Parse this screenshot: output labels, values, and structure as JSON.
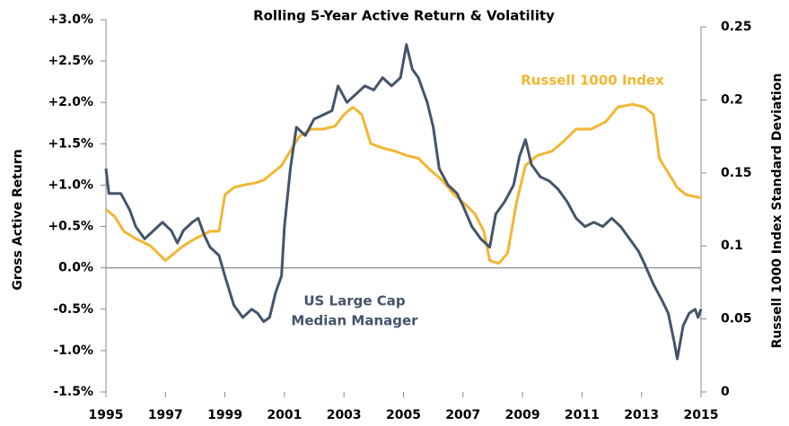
{
  "chart_data": {
    "type": "line",
    "title": "Rolling 5-Year Active Return & Volatility",
    "y_label": "Gross Active Return",
    "y2_label": "Russell 1000 Index Standard Deviation",
    "annotations": [
      "Russell 1000 Index",
      "US Large Cap",
      "Median Manager"
    ],
    "xlim": [
      1995,
      2015
    ],
    "xticks": [
      1995,
      1997,
      1999,
      2001,
      2003,
      2005,
      2007,
      2009,
      2011,
      2013,
      2015
    ],
    "ylim": [
      -1.5,
      3
    ],
    "yticks": [
      {
        "value": 3,
        "label": "+3.0%"
      },
      {
        "value": 2.5,
        "label": "+2.5%"
      },
      {
        "value": 2,
        "label": "+2.0%"
      },
      {
        "value": 1.5,
        "label": "+1.5%"
      },
      {
        "value": 1,
        "label": "+1.0%"
      },
      {
        "value": 0.5,
        "label": "+0.5%"
      },
      {
        "value": 0,
        "label": "0.0%"
      },
      {
        "value": -0.5,
        "label": "-0.5%"
      },
      {
        "value": -1,
        "label": "-1.0%"
      },
      {
        "value": -1.5,
        "label": "-1.5%"
      }
    ],
    "y2lim": [
      0,
      0.25
    ],
    "y2ticks": [
      0.25,
      0.2,
      0.15,
      0.1,
      0.05,
      0
    ],
    "series": [
      {
        "name": "US Large Cap Median Manager",
        "color": "#44546a",
        "axis": "y",
        "x": [
          1995.0,
          1995.1,
          1995.5,
          1995.8,
          1996.0,
          1996.3,
          1996.6,
          1996.9,
          1997.2,
          1997.4,
          1997.6,
          1997.9,
          1998.1,
          1998.3,
          1998.5,
          1998.8,
          1999.0,
          1999.3,
          1999.6,
          1999.9,
          2000.1,
          2000.3,
          2000.5,
          2000.7,
          2000.9,
          2001.0,
          2001.2,
          2001.4,
          2001.7,
          2002.0,
          2002.3,
          2002.6,
          2002.8,
          2003.1,
          2003.4,
          2003.7,
          2004.0,
          2004.3,
          2004.6,
          2004.9,
          2005.1,
          2005.3,
          2005.5,
          2005.8,
          2006.0,
          2006.2,
          2006.5,
          2006.8,
          2007.0,
          2007.3,
          2007.6,
          2007.9,
          2008.1,
          2008.4,
          2008.7,
          2008.9,
          2009.1,
          2009.3,
          2009.6,
          2009.9,
          2010.2,
          2010.5,
          2010.8,
          2011.1,
          2011.4,
          2011.7,
          2012.0,
          2012.3,
          2012.6,
          2012.9,
          2013.1,
          2013.4,
          2013.7,
          2013.9,
          2014.1,
          2014.2,
          2014.4,
          2014.6,
          2014.8,
          2014.9,
          2015.0
        ],
        "values": [
          1.2,
          0.9,
          0.9,
          0.7,
          0.5,
          0.35,
          0.45,
          0.55,
          0.45,
          0.3,
          0.45,
          0.55,
          0.6,
          0.4,
          0.25,
          0.15,
          -0.1,
          -0.45,
          -0.6,
          -0.5,
          -0.55,
          -0.65,
          -0.6,
          -0.3,
          -0.1,
          0.5,
          1.2,
          1.7,
          1.6,
          1.8,
          1.85,
          1.9,
          2.2,
          2.0,
          2.1,
          2.2,
          2.15,
          2.3,
          2.2,
          2.3,
          2.7,
          2.4,
          2.3,
          2.0,
          1.7,
          1.2,
          1.0,
          0.9,
          0.75,
          0.5,
          0.35,
          0.25,
          0.65,
          0.8,
          1.0,
          1.35,
          1.55,
          1.25,
          1.1,
          1.05,
          0.95,
          0.8,
          0.6,
          0.5,
          0.55,
          0.5,
          0.6,
          0.5,
          0.35,
          0.2,
          0.05,
          -0.2,
          -0.4,
          -0.55,
          -0.9,
          -1.1,
          -0.7,
          -0.55,
          -0.5,
          -0.6,
          -0.5
        ]
      },
      {
        "name": "Russell 1000 Index",
        "color": "#f2b632",
        "axis": "y2",
        "x": [
          1995.0,
          1995.3,
          1995.6,
          1996.0,
          1996.5,
          1997.0,
          1997.3,
          1997.6,
          1998.0,
          1998.5,
          1998.8,
          1999.0,
          1999.3,
          1999.7,
          2000.0,
          2000.3,
          2000.6,
          2000.9,
          2001.2,
          2001.5,
          2001.9,
          2002.3,
          2002.7,
          2003.0,
          2003.3,
          2003.6,
          2003.9,
          2004.3,
          2004.7,
          2005.1,
          2005.5,
          2005.9,
          2006.3,
          2006.7,
          2007.1,
          2007.4,
          2007.7,
          2007.9,
          2008.2,
          2008.5,
          2008.8,
          2009.1,
          2009.5,
          2010.0,
          2010.4,
          2010.8,
          2011.3,
          2011.8,
          2012.2,
          2012.7,
          2013.1,
          2013.4,
          2013.6,
          2013.9,
          2014.2,
          2014.5,
          2015.0
        ],
        "values": [
          0.125,
          0.12,
          0.11,
          0.105,
          0.1,
          0.09,
          0.095,
          0.1,
          0.105,
          0.11,
          0.11,
          0.135,
          0.14,
          0.142,
          0.143,
          0.145,
          0.15,
          0.155,
          0.165,
          0.175,
          0.18,
          0.18,
          0.182,
          0.19,
          0.195,
          0.19,
          0.17,
          0.167,
          0.165,
          0.162,
          0.16,
          0.152,
          0.145,
          0.135,
          0.128,
          0.122,
          0.11,
          0.09,
          0.088,
          0.095,
          0.13,
          0.155,
          0.162,
          0.165,
          0.172,
          0.18,
          0.18,
          0.185,
          0.195,
          0.197,
          0.195,
          0.19,
          0.16,
          0.15,
          0.14,
          0.135,
          0.133
        ]
      }
    ]
  }
}
